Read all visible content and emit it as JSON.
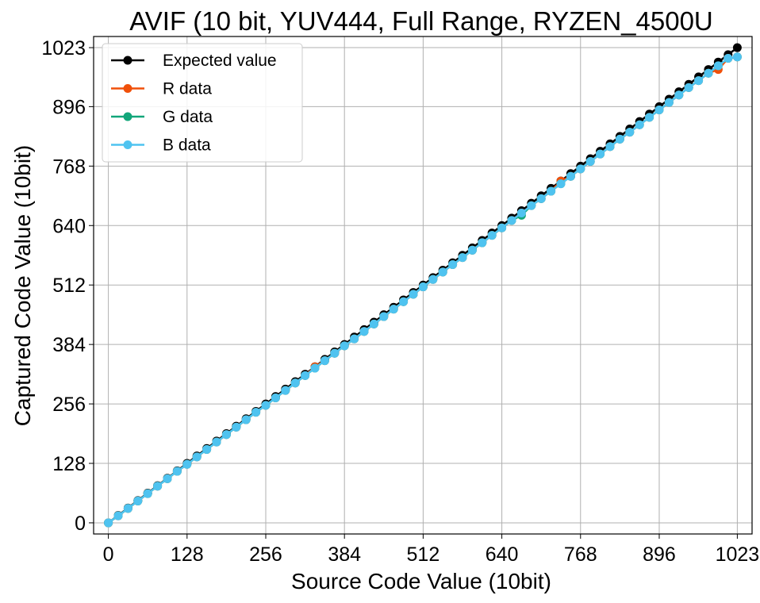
{
  "chart_data": {
    "type": "line",
    "title": "AVIF (10 bit, YUV444, Full Range, RYZEN_4500U",
    "xlabel": "Source Code Value (10bit)",
    "ylabel": "Captured Code Value (10bit)",
    "xlim": [
      -24,
      1047
    ],
    "ylim": [
      -24,
      1047
    ],
    "x_ticks": [
      0,
      128,
      256,
      384,
      512,
      640,
      768,
      896,
      1023
    ],
    "y_ticks": [
      0,
      128,
      256,
      384,
      512,
      640,
      768,
      896,
      1023
    ],
    "grid": true,
    "legend_position": "top-left",
    "x": [
      0,
      16,
      32,
      48,
      64,
      80,
      96,
      112,
      128,
      144,
      160,
      176,
      192,
      208,
      224,
      240,
      256,
      272,
      288,
      304,
      320,
      336,
      352,
      368,
      384,
      400,
      416,
      432,
      448,
      464,
      480,
      496,
      512,
      528,
      544,
      560,
      576,
      592,
      608,
      624,
      640,
      656,
      672,
      688,
      704,
      720,
      736,
      752,
      768,
      784,
      800,
      816,
      832,
      848,
      864,
      880,
      896,
      912,
      928,
      944,
      960,
      976,
      992,
      1008,
      1023
    ],
    "series": [
      {
        "name": "Expected value",
        "color": "#000000",
        "values": [
          0,
          16,
          32,
          48,
          64,
          80,
          96,
          112,
          128,
          144,
          160,
          176,
          192,
          208,
          224,
          240,
          256,
          272,
          288,
          304,
          320,
          336,
          352,
          368,
          384,
          400,
          416,
          432,
          448,
          464,
          480,
          496,
          512,
          528,
          544,
          560,
          576,
          592,
          608,
          624,
          640,
          656,
          672,
          688,
          704,
          720,
          736,
          752,
          768,
          784,
          800,
          816,
          832,
          848,
          864,
          880,
          896,
          912,
          928,
          944,
          960,
          976,
          992,
          1008,
          1023
        ]
      },
      {
        "name": "R data",
        "color": "#f0500a",
        "values": [
          0,
          15,
          31,
          47,
          63,
          79,
          95,
          111,
          126,
          142,
          158,
          174,
          190,
          206,
          222,
          238,
          253,
          269,
          285,
          301,
          317,
          336,
          349,
          365,
          381,
          396,
          412,
          428,
          444,
          460,
          476,
          492,
          508,
          524,
          540,
          556,
          571,
          587,
          603,
          619,
          635,
          651,
          667,
          683,
          698,
          714,
          736,
          746,
          762,
          778,
          794,
          810,
          826,
          841,
          857,
          873,
          889,
          905,
          921,
          937,
          952,
          968,
          976,
          1000,
          1003
        ]
      },
      {
        "name": "G data",
        "color": "#12a67a",
        "values": [
          0,
          15,
          31,
          47,
          63,
          79,
          95,
          111,
          126,
          142,
          158,
          174,
          190,
          206,
          222,
          238,
          253,
          269,
          285,
          301,
          317,
          333,
          349,
          365,
          381,
          396,
          412,
          428,
          444,
          460,
          476,
          492,
          508,
          524,
          540,
          556,
          571,
          587,
          603,
          619,
          635,
          651,
          662,
          683,
          698,
          714,
          730,
          746,
          762,
          778,
          794,
          810,
          826,
          841,
          857,
          873,
          889,
          905,
          921,
          937,
          952,
          968,
          984,
          1000,
          1003
        ]
      },
      {
        "name": "B data",
        "color": "#4fc3f0",
        "values": [
          0,
          15,
          31,
          47,
          63,
          79,
          95,
          111,
          126,
          142,
          158,
          174,
          190,
          206,
          222,
          238,
          253,
          269,
          285,
          301,
          317,
          333,
          349,
          365,
          381,
          396,
          412,
          428,
          444,
          460,
          476,
          492,
          508,
          524,
          540,
          556,
          571,
          587,
          603,
          619,
          635,
          651,
          667,
          683,
          698,
          714,
          730,
          746,
          762,
          778,
          794,
          810,
          826,
          841,
          857,
          873,
          889,
          905,
          921,
          937,
          952,
          968,
          984,
          1000,
          1003
        ]
      }
    ]
  }
}
